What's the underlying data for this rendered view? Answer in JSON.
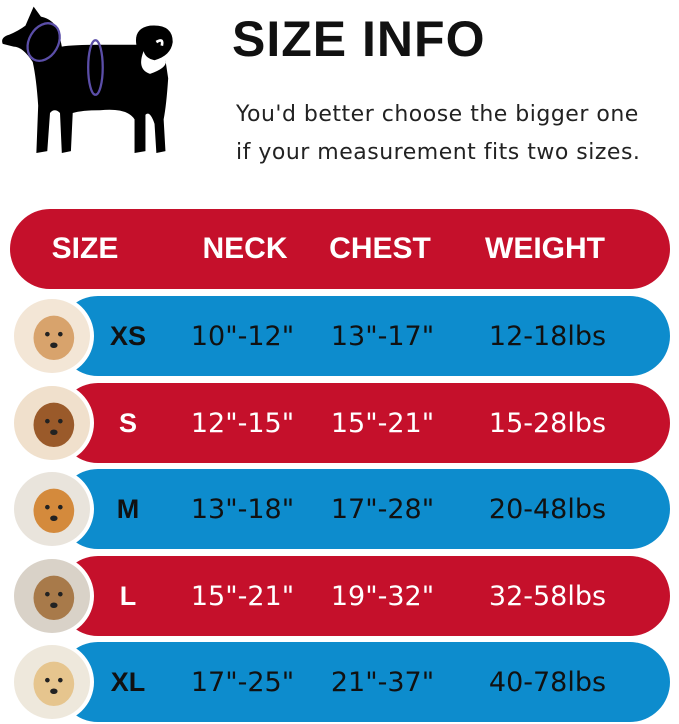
{
  "header": {
    "title": "SIZE INFO",
    "note_line1": "You'd better choose the bigger one",
    "note_line2": "if your measurement fits two sizes."
  },
  "colors": {
    "red": "#c5102b",
    "blue": "#0d8ccd",
    "ring": "#5b4ea8"
  },
  "table": {
    "columns": [
      "SIZE",
      "NECK",
      "CHEST",
      "WEIGHT"
    ],
    "rows": [
      {
        "size": "XS",
        "neck": "10\"-12\"",
        "chest": "13\"-17\"",
        "weight": "12-18lbs",
        "color": "blue",
        "photo": "pomeranian-photo"
      },
      {
        "size": "S",
        "neck": "12\"-15\"",
        "chest": "15\"-21\"",
        "weight": "15-28lbs",
        "color": "red",
        "photo": "poodle-photo"
      },
      {
        "size": "M",
        "neck": "13\"-18\"",
        "chest": "17\"-28\"",
        "weight": "20-48lbs",
        "color": "blue",
        "photo": "shiba-photo"
      },
      {
        "size": "L",
        "neck": "15\"-21\"",
        "chest": "19\"-32\"",
        "weight": "32-58lbs",
        "color": "red",
        "photo": "french-bulldog-photo"
      },
      {
        "size": "XL",
        "neck": "17\"-25\"",
        "chest": "21\"-37\"",
        "weight": "40-78lbs",
        "color": "blue",
        "photo": "labrador-photo"
      }
    ]
  }
}
